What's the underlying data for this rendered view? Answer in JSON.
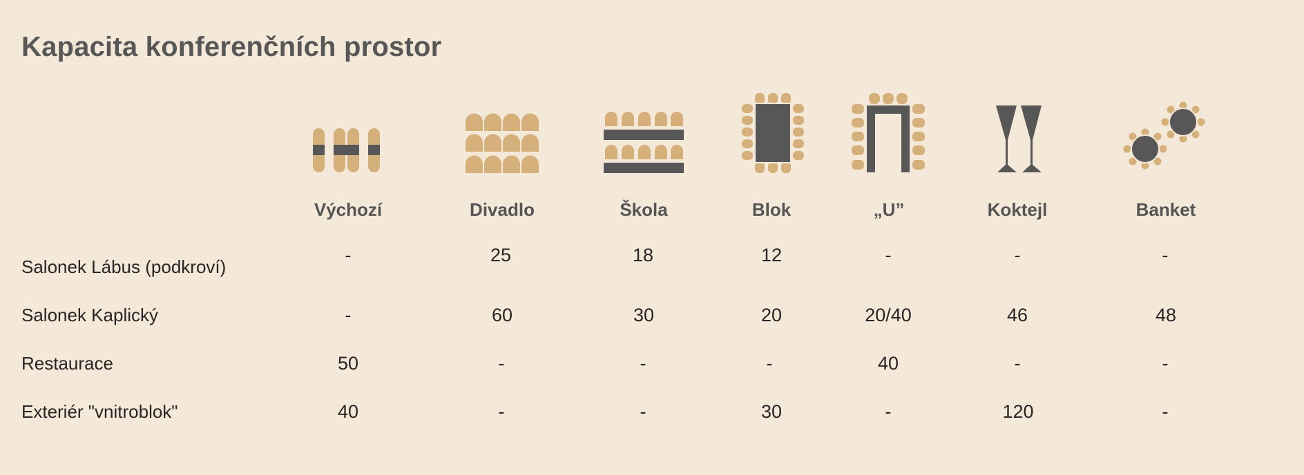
{
  "title": "Kapacita konferenčních prostor",
  "colors": {
    "background": "#f4e8d9",
    "seat": "#d6b07a",
    "table": "#575757",
    "text": "#2b2424"
  },
  "columns": [
    {
      "label": "Výchozí",
      "icon": "default-layout-icon"
    },
    {
      "label": "Divadlo",
      "icon": "theatre-layout-icon"
    },
    {
      "label": "Škola",
      "icon": "classroom-layout-icon"
    },
    {
      "label": "Blok",
      "icon": "boardroom-layout-icon"
    },
    {
      "label": "„U”",
      "icon": "u-shape-layout-icon"
    },
    {
      "label": "Koktejl",
      "icon": "cocktail-glasses-icon"
    },
    {
      "label": "Banket",
      "icon": "banquet-tables-icon"
    }
  ],
  "rows": [
    {
      "label": "Salonek Lábus (podkroví)",
      "values": [
        "-",
        "25",
        "18",
        "12",
        "-",
        "-",
        "-"
      ]
    },
    {
      "label": "Salonek Kaplický",
      "values": [
        "-",
        "60",
        "30",
        "20",
        "20/40",
        "46",
        "48"
      ]
    },
    {
      "label": "Restaurace",
      "values": [
        "50",
        "-",
        "-",
        "-",
        "40",
        "-",
        "-"
      ]
    },
    {
      "label": "Exteriér \"vnitroblok\"",
      "values": [
        "40",
        "-",
        "-",
        "30",
        "-",
        "120",
        "-"
      ]
    }
  ]
}
